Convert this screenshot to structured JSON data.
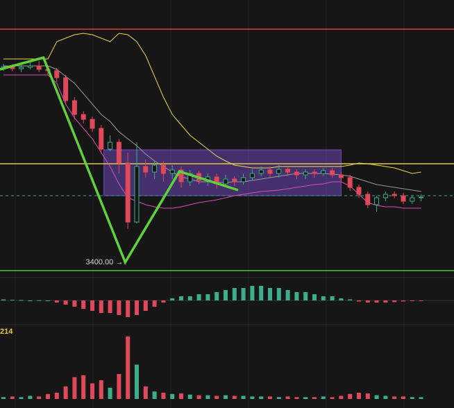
{
  "chart_data": {
    "type": "candlestick",
    "ylim": [
      3376,
      4156
    ],
    "open": [
      3960,
      3964,
      3958,
      3962,
      3966,
      3956,
      3952,
      3932,
      3866,
      3826,
      3812,
      3786,
      3726,
      3746,
      3686,
      3516,
      3676,
      3660,
      3680,
      3656,
      3666,
      3632,
      3656,
      3636,
      3646,
      3626,
      3640,
      3632,
      3644,
      3656,
      3666,
      3656,
      3668,
      3660,
      3652,
      3660,
      3656,
      3664,
      3652,
      3644,
      3616,
      3596,
      3566,
      3586,
      3596,
      3592,
      3576,
      3586
    ],
    "high": [
      3972,
      3970,
      3968,
      3976,
      3980,
      3964,
      3960,
      3940,
      3876,
      3836,
      3820,
      3796,
      3766,
      3756,
      3716,
      3746,
      3696,
      3692,
      3692,
      3680,
      3676,
      3666,
      3664,
      3656,
      3656,
      3652,
      3648,
      3656,
      3668,
      3676,
      3676,
      3680,
      3676,
      3668,
      3668,
      3668,
      3672,
      3672,
      3660,
      3652,
      3624,
      3604,
      3592,
      3604,
      3604,
      3600,
      3592,
      3596
    ],
    "low": [
      3952,
      3950,
      3948,
      3956,
      3948,
      3940,
      3920,
      3856,
      3812,
      3800,
      3776,
      3716,
      3720,
      3656,
      3496,
      3512,
      3644,
      3640,
      3632,
      3640,
      3616,
      3620,
      3624,
      3620,
      3612,
      3616,
      3620,
      3624,
      3636,
      3648,
      3644,
      3644,
      3648,
      3640,
      3640,
      3644,
      3648,
      3644,
      3632,
      3606,
      3586,
      3556,
      3546,
      3576,
      3584,
      3568,
      3568,
      3576
    ],
    "close": [
      3964,
      3958,
      3962,
      3966,
      3956,
      3952,
      3932,
      3866,
      3826,
      3812,
      3786,
      3726,
      3746,
      3686,
      3516,
      3676,
      3660,
      3680,
      3656,
      3666,
      3632,
      3656,
      3636,
      3646,
      3626,
      3640,
      3632,
      3644,
      3656,
      3666,
      3656,
      3668,
      3660,
      3652,
      3660,
      3656,
      3664,
      3652,
      3644,
      3616,
      3596,
      3566,
      3586,
      3596,
      3592,
      3576,
      3586,
      3588
    ],
    "up_color": "#3cae8c",
    "down_color": "#e0495b",
    "bands": [
      {
        "color": "#e8d84a",
        "values": [
          3986,
          3986,
          3986,
          3986,
          3986,
          3986,
          4036,
          4046,
          4056,
          4060,
          4056,
          4046,
          4036,
          4060,
          4056,
          4036,
          3996,
          3936,
          3876,
          3826,
          3796,
          3766,
          3746,
          3726,
          3706,
          3692,
          3680,
          3676,
          3672,
          3672,
          3672,
          3676,
          3676,
          3676,
          3676,
          3676,
          3676,
          3676,
          3676,
          3680,
          3686,
          3684,
          3680,
          3676,
          3672,
          3664,
          3656,
          3660
        ]
      },
      {
        "color": "#9a9a9a",
        "values": [
          3966,
          3966,
          3966,
          3966,
          3966,
          3966,
          3956,
          3936,
          3916,
          3886,
          3856,
          3826,
          3806,
          3776,
          3756,
          3736,
          3712,
          3692,
          3676,
          3660,
          3646,
          3640,
          3632,
          3632,
          3630,
          3630,
          3632,
          3632,
          3636,
          3640,
          3644,
          3648,
          3652,
          3656,
          3656,
          3656,
          3656,
          3654,
          3652,
          3648,
          3640,
          3632,
          3624,
          3620,
          3616,
          3612,
          3608,
          3604
        ]
      },
      {
        "color": "#d94fb8",
        "values": [
          3940,
          3940,
          3940,
          3940,
          3940,
          3940,
          3916,
          3856,
          3816,
          3786,
          3756,
          3716,
          3676,
          3626,
          3586,
          3576,
          3566,
          3560,
          3556,
          3556,
          3560,
          3566,
          3572,
          3576,
          3580,
          3586,
          3592,
          3596,
          3600,
          3604,
          3606,
          3608,
          3612,
          3616,
          3620,
          3624,
          3626,
          3632,
          3632,
          3620,
          3596,
          3572,
          3564,
          3560,
          3560,
          3556,
          3556,
          3556
        ]
      }
    ],
    "levels": [
      {
        "value": 4072,
        "color": "#e03a3a"
      },
      {
        "value": 3684,
        "color": "#e8c441"
      },
      {
        "value": 3592,
        "color": "#3aa89a",
        "dashed": true
      },
      {
        "value": 3376,
        "color": "#4cc23a"
      }
    ],
    "box": {
      "x": [
        11.3,
        38
      ],
      "y": [
        3592,
        3724
      ],
      "color": "#7a4fd6"
    },
    "zigzag": {
      "x": [
        -0.4,
        4.5,
        13.7,
        19.8,
        26.4
      ],
      "values": [
        3956,
        3990,
        3400,
        3662,
        3608
      ],
      "color": "#5fd13a"
    },
    "annotation": "3400.00 →",
    "macd": {
      "ylim": [
        -10,
        10
      ],
      "values": [
        0.5,
        0.3,
        0.2,
        0,
        0.1,
        0,
        -1,
        -2,
        -3,
        -4,
        -5,
        -6,
        -6,
        -7,
        -8,
        -7,
        -5,
        -3,
        -1,
        1,
        2,
        2,
        3,
        3,
        4,
        5,
        6,
        6,
        7,
        7,
        6,
        6,
        5,
        4,
        4,
        3,
        2,
        2,
        1,
        0.5,
        -0.5,
        -1,
        -1,
        -1,
        -0.8,
        -0.5,
        -0.3,
        -0.2
      ]
    },
    "volume_label": "214",
    "volume": {
      "ylim": [
        0,
        100
      ],
      "values": [
        3,
        4,
        3,
        5,
        4,
        8,
        10,
        20,
        35,
        38,
        25,
        30,
        18,
        40,
        100,
        55,
        20,
        12,
        10,
        8,
        9,
        7,
        6,
        6,
        5,
        6,
        5,
        5,
        4,
        4,
        4,
        3,
        4,
        3,
        3,
        3,
        4,
        3,
        5,
        8,
        10,
        9,
        6,
        5,
        4,
        4,
        3,
        3
      ]
    }
  }
}
